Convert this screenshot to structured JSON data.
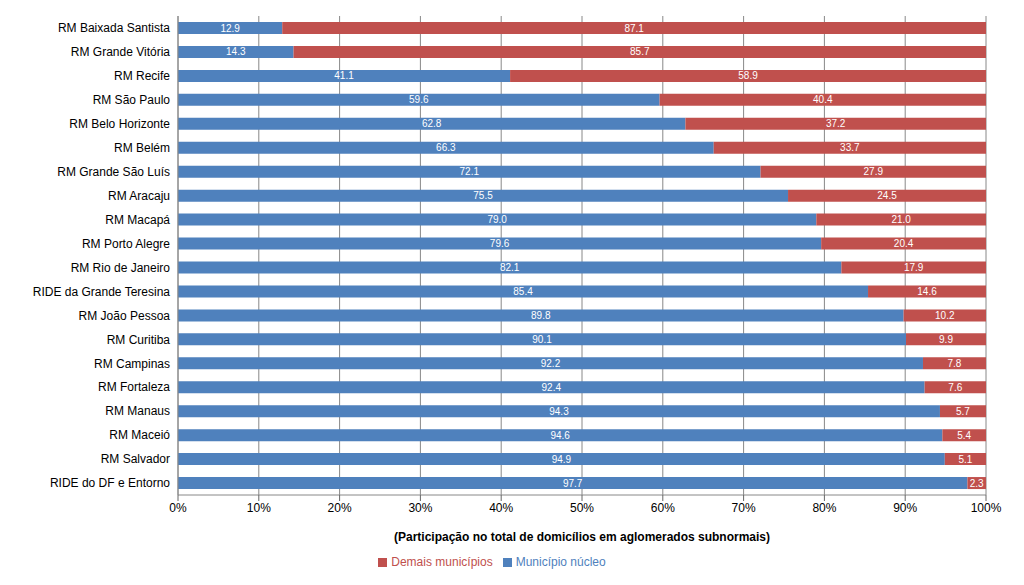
{
  "chart_data": {
    "type": "bar",
    "orientation": "horizontal",
    "stacked": true,
    "data_labels": true,
    "grid": true,
    "legend": "bottom",
    "x_label": "(Participação no total de domicílios em aglomerados subnormais)",
    "categories": [
      "RM Baixada Santista",
      "RM Grande Vitória",
      "RM Recife",
      "RM São Paulo",
      "RM Belo Horizonte",
      "RM Belém",
      "RM Grande São Luís",
      "RM Aracaju",
      "RM Macapá",
      "RM Porto Alegre",
      "RM Rio de Janeiro",
      "RIDE da Grande Teresina",
      "RM João Pessoa",
      "RM Curitiba",
      "RM Campinas",
      "RM Fortaleza",
      "RM Manaus",
      "RM Maceió",
      "RM Salvador",
      "RIDE do DF e Entorno"
    ],
    "series": [
      {
        "name": "Município núcleo",
        "color": "#4f81bd",
        "values": [
          12.9,
          14.3,
          41.1,
          59.6,
          62.8,
          66.3,
          72.1,
          75.5,
          79.0,
          79.6,
          82.1,
          85.4,
          89.8,
          90.1,
          92.2,
          92.4,
          94.3,
          94.6,
          94.9,
          97.7
        ],
        "value_labels": [
          "12.9",
          "14.3",
          "41.1",
          "59.6",
          "62.8",
          "66.3",
          "72.1",
          "75.5",
          "79.0",
          "79.6",
          "82.1",
          "85.4",
          "89.8",
          "90.1",
          "92.2",
          "92.4",
          "94.3",
          "94.6",
          "94.9",
          "97.7"
        ]
      },
      {
        "name": "Demais municípios",
        "color": "#c0504d",
        "values": [
          87.1,
          85.7,
          58.9,
          40.4,
          37.2,
          33.7,
          27.9,
          24.5,
          21.0,
          20.4,
          17.9,
          14.6,
          10.2,
          9.9,
          7.8,
          7.6,
          5.7,
          5.4,
          5.1,
          2.3
        ],
        "value_labels": [
          "87.1",
          "85.7",
          "58.9",
          "40.4",
          "37.2",
          "33.7",
          "27.9",
          "24.5",
          "21.0",
          "20.4",
          "17.9",
          "14.6",
          "10.2",
          "9.9",
          "7.8",
          "7.6",
          "5.7",
          "5.4",
          "5.1",
          "2.3"
        ]
      }
    ],
    "xlim": [
      0,
      100
    ],
    "xticks": [
      {
        "value": 0,
        "label": "0%"
      },
      {
        "value": 10,
        "label": "10%"
      },
      {
        "value": 20,
        "label": "20%"
      },
      {
        "value": 30,
        "label": "30%"
      },
      {
        "value": 40,
        "label": "40%"
      },
      {
        "value": 50,
        "label": "50%"
      },
      {
        "value": 60,
        "label": "60%"
      },
      {
        "value": 70,
        "label": "70%"
      },
      {
        "value": 80,
        "label": "80%"
      },
      {
        "value": 90,
        "label": "90%"
      },
      {
        "value": 100,
        "label": "100%"
      }
    ]
  }
}
